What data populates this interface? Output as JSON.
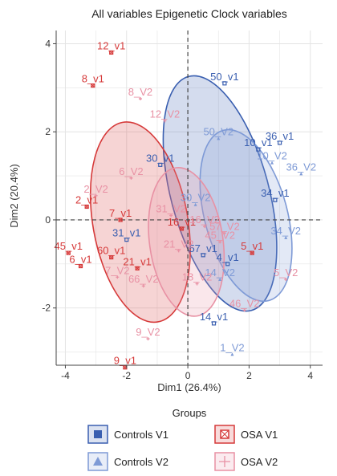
{
  "chart_data": {
    "type": "scatter",
    "title": "All variables Epigenetic Clock variables",
    "xlabel": "Dim1 (26.4%)",
    "ylabel": "Dim2 (20.4%)",
    "xlim": [
      -4.3,
      4.4
    ],
    "ylim": [
      -3.3,
      4.3
    ],
    "xticks": [
      -4,
      -2,
      0,
      2,
      4
    ],
    "yticks": [
      -2,
      0,
      2,
      4
    ],
    "grid": true,
    "legend_title": "Groups",
    "legend_position": "bottom",
    "colors": {
      "controls_v1": "#3a5fb0",
      "controls_v2": "#7e9ad6",
      "osa_v1": "#d63a3a",
      "osa_v2": "#e891a4"
    },
    "series": [
      {
        "name": "Controls V1",
        "key": "controls_v1",
        "marker": "square",
        "points": [
          {
            "label": "50_v1",
            "x": 1.2,
            "y": 3.1
          },
          {
            "label": "10_v1",
            "x": 2.3,
            "y": 1.6
          },
          {
            "label": "36_v1",
            "x": 3.0,
            "y": 1.75
          },
          {
            "label": "30_v1",
            "x": -0.9,
            "y": 1.25
          },
          {
            "label": "34_v1",
            "x": 2.85,
            "y": 0.45
          },
          {
            "label": "31_v1",
            "x": -2.0,
            "y": -0.45
          },
          {
            "label": "57_v1",
            "x": 0.5,
            "y": -0.8
          },
          {
            "label": "4_v1",
            "x": 1.3,
            "y": -1.0
          },
          {
            "label": "14_v1",
            "x": 0.85,
            "y": -2.35
          }
        ]
      },
      {
        "name": "Controls V2",
        "key": "controls_v2",
        "marker": "triangle",
        "points": [
          {
            "label": "50_V2",
            "x": 1.0,
            "y": 1.85
          },
          {
            "label": "10_V2",
            "x": 2.75,
            "y": 1.3
          },
          {
            "label": "36_V2",
            "x": 3.7,
            "y": 1.05
          },
          {
            "label": "30_V2",
            "x": 0.25,
            "y": 0.35
          },
          {
            "label": "34_V2",
            "x": 3.2,
            "y": -0.4
          },
          {
            "label": "14_V2",
            "x": 1.05,
            "y": -1.35
          },
          {
            "label": "1_V2",
            "x": 1.45,
            "y": -3.05
          }
        ]
      },
      {
        "name": "OSA V1",
        "key": "osa_v1",
        "marker": "square-cross",
        "points": [
          {
            "label": "12_v1",
            "x": -2.5,
            "y": 3.8
          },
          {
            "label": "8_v1",
            "x": -3.1,
            "y": 3.05
          },
          {
            "label": "2_v1",
            "x": -3.3,
            "y": 0.3
          },
          {
            "label": "7_v1",
            "x": -2.2,
            "y": 0.0
          },
          {
            "label": "45_v1",
            "x": -3.9,
            "y": -0.75
          },
          {
            "label": "6_v1",
            "x": -3.5,
            "y": -1.05
          },
          {
            "label": "60_v1",
            "x": -2.5,
            "y": -0.85
          },
          {
            "label": "21_v1",
            "x": -1.65,
            "y": -1.1
          },
          {
            "label": "16_v1",
            "x": -0.2,
            "y": -0.2
          },
          {
            "label": "5_v1",
            "x": 2.1,
            "y": -0.75
          },
          {
            "label": "9_v1",
            "x": -2.05,
            "y": -3.35
          }
        ]
      },
      {
        "name": "OSA V2",
        "key": "osa_v2",
        "marker": "plus",
        "points": [
          {
            "label": "8_V2",
            "x": -1.55,
            "y": 2.75
          },
          {
            "label": "12_V2",
            "x": -0.75,
            "y": 2.25
          },
          {
            "label": "6_V2",
            "x": -1.85,
            "y": 0.95
          },
          {
            "label": "2_V2",
            "x": -3.0,
            "y": 0.55
          },
          {
            "label": "5_V2",
            "x": 3.2,
            "y": -1.35
          },
          {
            "label": "66_V2",
            "x": -1.45,
            "y": -1.5
          },
          {
            "label": "7_V2",
            "x": -2.3,
            "y": -1.3
          },
          {
            "label": "18_V2",
            "x": 0.3,
            "y": -1.45
          },
          {
            "label": "46_V2",
            "x": 1.85,
            "y": -2.05
          },
          {
            "label": "9_V2",
            "x": -1.3,
            "y": -2.7
          },
          {
            "label": "21_V2",
            "x": -0.3,
            "y": -0.7
          },
          {
            "label": "31_V2",
            "x": -0.55,
            "y": 0.1
          },
          {
            "label": "57_V2",
            "x": 1.2,
            "y": -0.3
          },
          {
            "label": "16_V2",
            "x": 0.55,
            "y": -0.15
          },
          {
            "label": "45_V2",
            "x": 1.05,
            "y": -0.5
          }
        ]
      }
    ],
    "ellipses": [
      {
        "key": "controls_v1",
        "cx": 1.05,
        "cy": 0.6,
        "rx": 1.6,
        "ry": 2.75,
        "rot": -15
      },
      {
        "key": "controls_v2",
        "cx": 1.9,
        "cy": 0.1,
        "rx": 1.35,
        "ry": 2.0,
        "rot": -15
      },
      {
        "key": "osa_v1",
        "cx": -1.55,
        "cy": -0.05,
        "rx": 1.55,
        "ry": 2.3,
        "rot": -10
      },
      {
        "key": "osa_v2",
        "cx": -0.05,
        "cy": -0.5,
        "rx": 1.2,
        "ry": 1.7,
        "rot": -8
      }
    ],
    "legend": [
      {
        "key": "controls_v1",
        "label": "Controls V1",
        "marker": "square"
      },
      {
        "key": "osa_v1",
        "label": "OSA V1",
        "marker": "square-cross"
      },
      {
        "key": "controls_v2",
        "label": "Controls V2",
        "marker": "triangle"
      },
      {
        "key": "osa_v2",
        "label": "OSA V2",
        "marker": "plus"
      }
    ]
  }
}
